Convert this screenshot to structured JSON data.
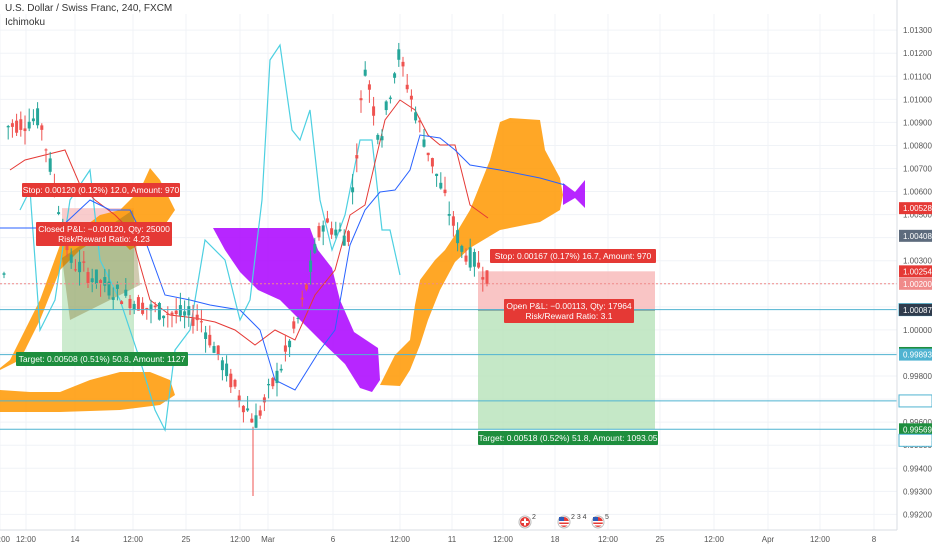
{
  "header": {
    "symbol_line": "U.S. Dollar / Swiss Franc, 240, FXCM",
    "indicator": "Ichimoku"
  },
  "colors": {
    "candle_up": "#26a69a",
    "candle_down": "#ef5350",
    "tenkan": "#2962ff",
    "kijun": "#e53935",
    "chikou": "#4dd0e1",
    "base_line": "#5e35b1",
    "cloud_bull": "#ff9800",
    "cloud_bear": "#aa00ff",
    "stop_zone": "#f7b6b6",
    "target_zone": "#b7e2b9",
    "h_line": "#4fb3d1"
  },
  "chart_data": {
    "type": "candlestick",
    "timeframe": "240",
    "symbol": "USDCHF",
    "y_axis_ticks": [
      "1.01300",
      "1.01200",
      "1.01100",
      "1.01000",
      "1.00900",
      "1.00800",
      "1.00700",
      "1.00600",
      "1.00500",
      "1.00400",
      "1.00300",
      "1.00200",
      "1.00100",
      "1.00000",
      "0.99900",
      "0.99800",
      "0.99700",
      "0.99600",
      "0.99500",
      "0.99400",
      "0.99300",
      "0.99200"
    ],
    "ylim": [
      0.9918,
      1.0137
    ],
    "x_axis_ticks": [
      "12:00",
      "14",
      "12:00",
      "25",
      "12:00",
      "Mar",
      "6",
      "12:00",
      "11",
      "12:00",
      "18",
      "12:00",
      "25",
      "12:00",
      "Apr",
      "12:00",
      "8",
      "12:00"
    ],
    "price_labels": [
      {
        "value": "1.00528",
        "color": "#e53935"
      },
      {
        "value": "1.00408",
        "color": "#5d6b7d"
      },
      {
        "value": "1.00254",
        "color": "#e53935"
      },
      {
        "value": "1.00200",
        "color": "#f08a8a"
      },
      {
        "value": "1.00088",
        "color": "#4fb3d1",
        "outlined": true
      },
      {
        "value": "1.00087",
        "color": "#2f3b4c"
      },
      {
        "value": "0.99900",
        "color": "#1e8e3e"
      },
      {
        "value": "0.99893",
        "color": "#4fb3d1"
      },
      {
        "value": "0.99692",
        "color": "#4fb3d1",
        "outlined": true
      },
      {
        "value": "0.99569",
        "color": "#1e8e3e"
      },
      {
        "value": "0.99569",
        "color": "#4fb3d1",
        "outlined": true
      }
    ],
    "horizontal_lines": [
      1.00088,
      0.99893,
      0.99692,
      0.99569
    ],
    "current_price": 1.002,
    "closed_short_position": {
      "stop_label": "Stop: 0.00120 (0.12%) 12.0, Amount: 970",
      "pnl_label": "Closed P&L: −0.00120, Qty: 25000",
      "rr_label": "Risk/Reward Ratio: 4.23",
      "target_label": "Target: 0.00508 (0.51%) 50.8, Amount: 1127"
    },
    "open_short_position": {
      "stop_label": "Stop: 0.00167 (0.17%) 16.7, Amount: 970",
      "pnl_label": "Open P&L: −0.00113, Qty: 17964",
      "rr_label": "Risk/Reward Ratio: 3.1",
      "target_label": "Target: 0.00518 (0.52%) 51.8, Amount: 1093.05"
    },
    "events": [
      {
        "icon": "swiss-flag-icon",
        "count": "2"
      },
      {
        "icon": "us-flag-icon",
        "count": "2 3 4"
      },
      {
        "icon": "us-flag-icon",
        "count": "5"
      }
    ]
  }
}
